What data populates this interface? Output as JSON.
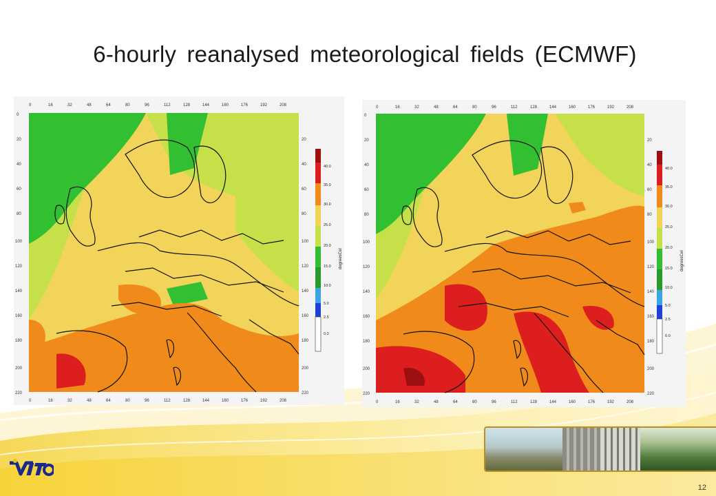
{
  "slide": {
    "title": "6-hourly reanalysed meteorological fields (ECMWF)",
    "page_number": "12"
  },
  "maps": [
    {
      "name": "left-map",
      "x_ticks": [
        "0",
        "16",
        "32",
        "48",
        "64",
        "80",
        "96",
        "112",
        "128",
        "144",
        "160",
        "176",
        "192",
        "208"
      ],
      "y_ticks": [
        "0",
        "20",
        "40",
        "60",
        "80",
        "100",
        "120",
        "140",
        "160",
        "180",
        "200",
        "220"
      ],
      "colorbar": {
        "unit": "degreesCel",
        "labels": [
          "40.0",
          "35.0",
          "30.0",
          "25.0",
          "20.0",
          "15.0",
          "10.0",
          "5.0",
          "2.5",
          "0.0"
        ],
        "colors": [
          "#9e1010",
          "#dd1e1e",
          "#f08a1a",
          "#f2d45a",
          "#c6e04a",
          "#32c032",
          "#2a9a2a",
          "#3aa6e8",
          "#2040d8",
          "#ffffff"
        ]
      }
    },
    {
      "name": "right-map",
      "x_ticks": [
        "0",
        "16",
        "32",
        "48",
        "64",
        "80",
        "96",
        "112",
        "128",
        "144",
        "160",
        "176",
        "192",
        "208"
      ],
      "y_ticks": [
        "0",
        "20",
        "40",
        "60",
        "80",
        "100",
        "120",
        "140",
        "160",
        "180",
        "200",
        "220"
      ],
      "colorbar": {
        "unit": "degreesCel",
        "labels": [
          "40.0",
          "35.0",
          "30.0",
          "25.0",
          "20.0",
          "15.0",
          "10.0",
          "5.0",
          "2.5",
          "0.0"
        ],
        "colors": [
          "#9e1010",
          "#dd1e1e",
          "#f08a1a",
          "#f2d45a",
          "#c6e04a",
          "#32c032",
          "#2a9a2a",
          "#3aa6e8",
          "#2040d8",
          "#ffffff"
        ]
      }
    }
  ],
  "logo": {
    "text": "VITO",
    "color": "#1a2a8a"
  },
  "colors": {
    "accent": "#f2c21c",
    "title": "#1a1a1a"
  }
}
